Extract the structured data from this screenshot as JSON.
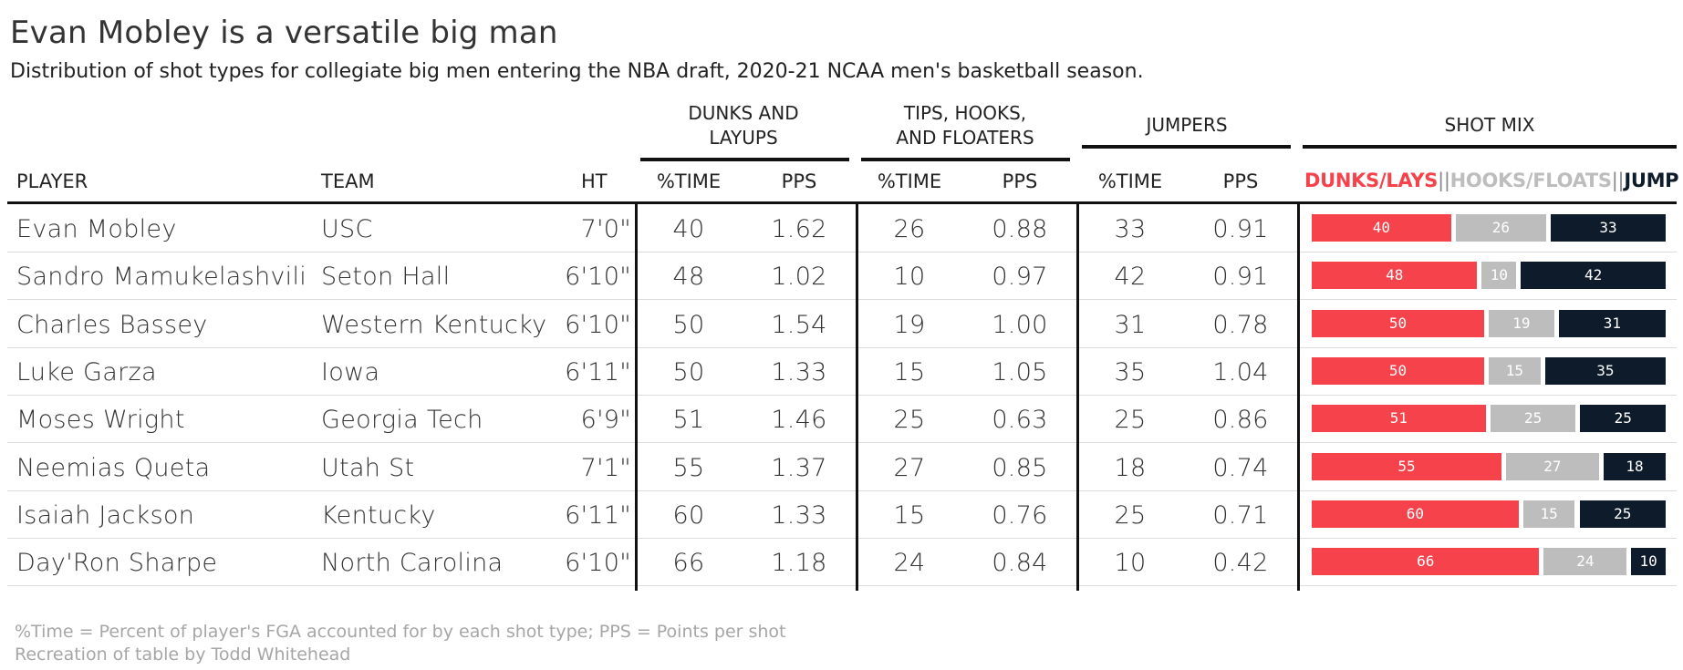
{
  "title": "Evan Mobley is a versatile big man",
  "subtitle": "Distribution of shot types for collegiate big men entering the NBA draft, 2020-21 NCAA men's basketball season.",
  "groups": {
    "dunks_line1": "DUNKS AND",
    "dunks_line2": "LAYUPS",
    "tips_line1": "TIPS, HOOKS,",
    "tips_line2": "AND FLOATERS",
    "jumpers": "JUMPERS",
    "shot_mix": "SHOT MIX"
  },
  "columns": {
    "player": "PLAYER",
    "team": "TEAM",
    "ht": "HT",
    "time": "%TIME",
    "pps": "PPS"
  },
  "legend": {
    "dunks": "DUNKS/LAYS",
    "sep1": "||",
    "hooks": "HOOKS/FLOATS",
    "sep2": "||",
    "jump": "JUMP"
  },
  "colors": {
    "dunks": "#f5424b",
    "hooks": "#bdbdbd",
    "jump": "#0e1b2b"
  },
  "chart_data": {
    "type": "table",
    "title": "Evan Mobley is a versatile big man",
    "subtitle": "Distribution of shot types for collegiate big men entering the NBA draft, 2020-21 NCAA men's basketball season.",
    "rows": [
      {
        "player": "Evan Mobley",
        "team": "USC",
        "ht": "7'0\"",
        "dunks_time": 40,
        "dunks_pps": "1.62",
        "tips_time": 26,
        "tips_pps": "0.88",
        "jump_time": 33,
        "jump_pps": "0.91"
      },
      {
        "player": "Sandro Mamukelashvili",
        "team": "Seton Hall",
        "ht": "6'10\"",
        "dunks_time": 48,
        "dunks_pps": "1.02",
        "tips_time": 10,
        "tips_pps": "0.97",
        "jump_time": 42,
        "jump_pps": "0.91"
      },
      {
        "player": "Charles Bassey",
        "team": "Western Kentucky",
        "ht": "6'10\"",
        "dunks_time": 50,
        "dunks_pps": "1.54",
        "tips_time": 19,
        "tips_pps": "1.00",
        "jump_time": 31,
        "jump_pps": "0.78"
      },
      {
        "player": "Luke Garza",
        "team": "Iowa",
        "ht": "6'11\"",
        "dunks_time": 50,
        "dunks_pps": "1.33",
        "tips_time": 15,
        "tips_pps": "1.05",
        "jump_time": 35,
        "jump_pps": "1.04"
      },
      {
        "player": "Moses Wright",
        "team": "Georgia Tech",
        "ht": "6'9\"",
        "dunks_time": 51,
        "dunks_pps": "1.46",
        "tips_time": 25,
        "tips_pps": "0.63",
        "jump_time": 25,
        "jump_pps": "0.86"
      },
      {
        "player": "Neemias Queta",
        "team": "Utah St",
        "ht": "7'1\"",
        "dunks_time": 55,
        "dunks_pps": "1.37",
        "tips_time": 27,
        "tips_pps": "0.85",
        "jump_time": 18,
        "jump_pps": "0.74"
      },
      {
        "player": "Isaiah Jackson",
        "team": "Kentucky",
        "ht": "6'11\"",
        "dunks_time": 60,
        "dunks_pps": "1.33",
        "tips_time": 15,
        "tips_pps": "0.76",
        "jump_time": 25,
        "jump_pps": "0.71"
      },
      {
        "player": "Day'Ron Sharpe",
        "team": "North Carolina",
        "ht": "6'10\"",
        "dunks_time": 66,
        "dunks_pps": "1.18",
        "tips_time": 24,
        "tips_pps": "0.84",
        "jump_time": 10,
        "jump_pps": "0.42"
      }
    ]
  },
  "footnote1": "%Time = Percent of player's FGA accounted for by each shot type; PPS = Points per shot",
  "footnote2": "Recreation of table by Todd Whitehead"
}
